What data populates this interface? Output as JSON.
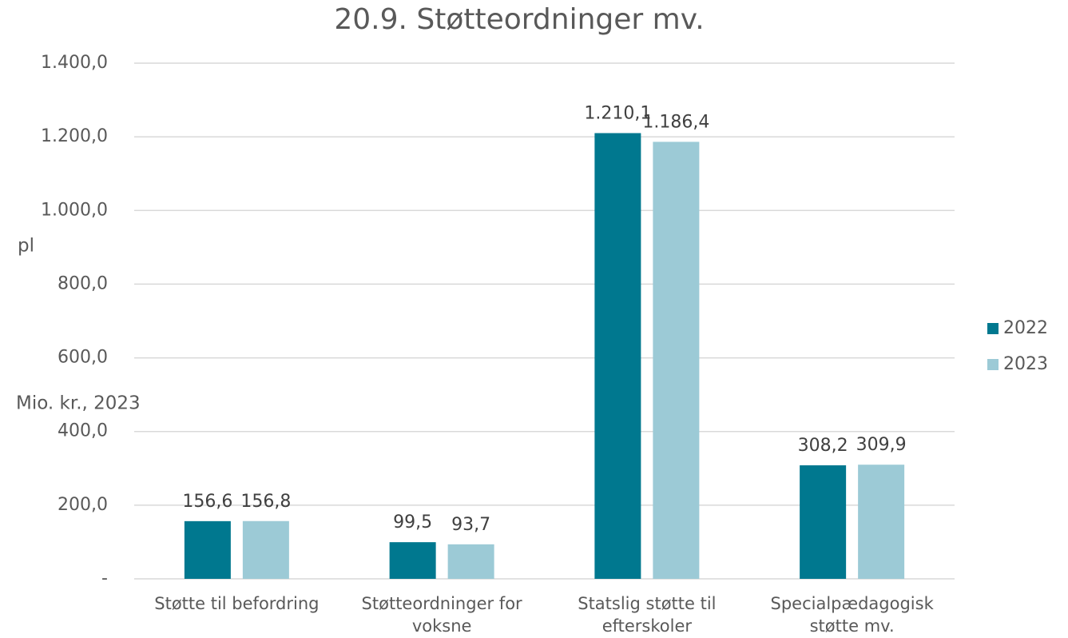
{
  "chart_data": {
    "type": "bar",
    "title": "20.9. Støtteordninger mv.",
    "ylabel": "Mio. kr., 2023",
    "ylabel_suffix": "pl",
    "categories": [
      "Støtte til befordring",
      "Støtteordninger for voksne",
      "Statslig støtte til efterskoler",
      "Specialpædagogisk støtte mv."
    ],
    "series": [
      {
        "name": "2022",
        "color": "#00788f",
        "values": [
          156.6,
          99.5,
          1210.1,
          308.2
        ],
        "value_labels": [
          "156,6",
          "99,5",
          "1.210,1",
          "308,2"
        ]
      },
      {
        "name": "2023",
        "color": "#9ccad6",
        "values": [
          156.8,
          93.7,
          1186.4,
          309.9
        ],
        "value_labels": [
          "156,8",
          "93,7",
          "1.186,4",
          "309,9"
        ]
      }
    ],
    "ylim": [
      0,
      1400
    ],
    "yticks": [
      {
        "value": 0,
        "label": "-"
      },
      {
        "value": 200,
        "label": "200,0"
      },
      {
        "value": 400,
        "label": "400,0"
      },
      {
        "value": 600,
        "label": "600,0"
      },
      {
        "value": 800,
        "label": "800,0"
      },
      {
        "value": 1000,
        "label": "1.000,0"
      },
      {
        "value": 1200,
        "label": "1.200,0"
      },
      {
        "value": 1400,
        "label": "1.400,0"
      }
    ],
    "grid": true,
    "legend": "right"
  }
}
